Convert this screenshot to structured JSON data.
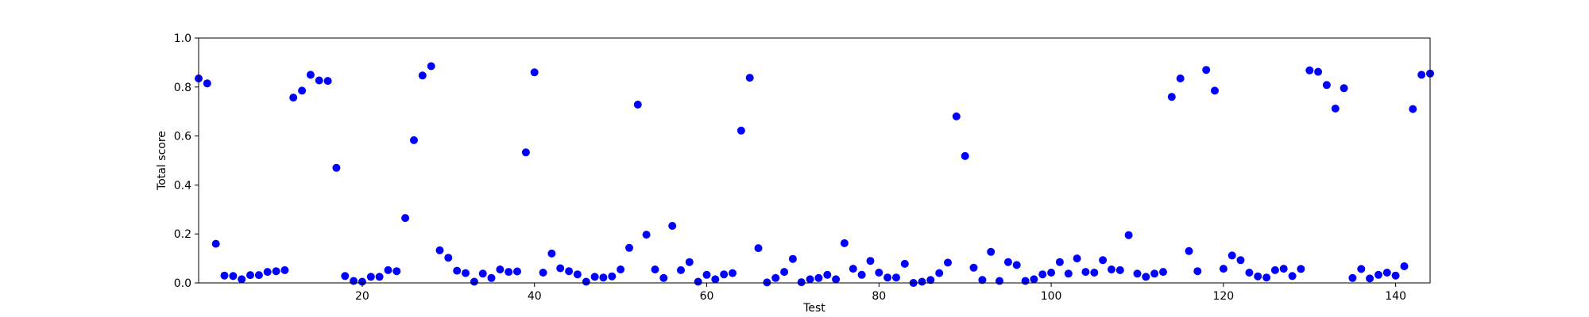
{
  "chart_data": {
    "type": "scatter",
    "title": "",
    "xlabel": "Test",
    "ylabel": "Total score",
    "xlim": [
      1,
      144
    ],
    "ylim": [
      0,
      1.0
    ],
    "x_ticks": [
      20,
      40,
      60,
      80,
      100,
      120,
      140
    ],
    "x_tick_labels": [
      "20",
      "40",
      "60",
      "80",
      "100",
      "120",
      "140"
    ],
    "y_ticks": [
      0.0,
      0.2,
      0.4,
      0.6,
      0.8,
      1.0
    ],
    "y_tick_labels": [
      "0.0",
      "0.2",
      "0.4",
      "0.6",
      "0.8",
      "1.0"
    ],
    "grid": false,
    "point_color": "#0000ff",
    "x": [
      1,
      2,
      3,
      4,
      5,
      6,
      7,
      8,
      9,
      10,
      11,
      12,
      13,
      14,
      15,
      16,
      17,
      18,
      19,
      20,
      21,
      22,
      23,
      24,
      25,
      26,
      27,
      28,
      29,
      30,
      31,
      32,
      33,
      34,
      35,
      36,
      37,
      38,
      39,
      40,
      41,
      42,
      43,
      44,
      45,
      46,
      47,
      48,
      49,
      50,
      51,
      52,
      53,
      54,
      55,
      56,
      57,
      58,
      59,
      60,
      61,
      62,
      63,
      64,
      65,
      66,
      67,
      68,
      69,
      70,
      71,
      72,
      73,
      74,
      75,
      76,
      77,
      78,
      79,
      80,
      81,
      82,
      83,
      84,
      85,
      86,
      87,
      88,
      89,
      90,
      91,
      92,
      93,
      94,
      95,
      96,
      97,
      98,
      99,
      100,
      101,
      102,
      103,
      104,
      105,
      106,
      107,
      108,
      109,
      110,
      111,
      112,
      113,
      114,
      115,
      116,
      117,
      118,
      119,
      120,
      121,
      122,
      123,
      124,
      125,
      126,
      127,
      128,
      129,
      130,
      131,
      132,
      133,
      134,
      135,
      136,
      137,
      138,
      139,
      140,
      141,
      142,
      143,
      144
    ],
    "y": [
      0.835,
      0.815,
      0.16,
      0.03,
      0.028,
      0.015,
      0.032,
      0.032,
      0.045,
      0.048,
      0.052,
      0.757,
      0.785,
      0.85,
      0.827,
      0.825,
      0.47,
      0.028,
      0.008,
      0.005,
      0.025,
      0.025,
      0.052,
      0.048,
      0.265,
      0.583,
      0.847,
      0.885,
      0.133,
      0.103,
      0.05,
      0.04,
      0.005,
      0.038,
      0.02,
      0.055,
      0.045,
      0.047,
      0.533,
      0.86,
      0.042,
      0.12,
      0.06,
      0.048,
      0.035,
      0.005,
      0.025,
      0.022,
      0.027,
      0.055,
      0.143,
      0.728,
      0.197,
      0.055,
      0.02,
      0.233,
      0.052,
      0.085,
      0.005,
      0.033,
      0.015,
      0.035,
      0.04,
      0.622,
      0.838,
      0.142,
      0.002,
      0.02,
      0.045,
      0.098,
      0.003,
      0.015,
      0.02,
      0.033,
      0.015,
      0.162,
      0.058,
      0.033,
      0.09,
      0.042,
      0.022,
      0.022,
      0.078,
      0.0,
      0.005,
      0.012,
      0.04,
      0.083,
      0.68,
      0.518,
      0.062,
      0.012,
      0.127,
      0.008,
      0.085,
      0.073,
      0.008,
      0.015,
      0.035,
      0.042,
      0.085,
      0.038,
      0.1,
      0.045,
      0.042,
      0.093,
      0.055,
      0.052,
      0.195,
      0.038,
      0.025,
      0.038,
      0.045,
      0.76,
      0.835,
      0.13,
      0.048,
      0.87,
      0.785,
      0.058,
      0.112,
      0.093,
      0.042,
      0.027,
      0.022,
      0.052,
      0.058,
      0.028,
      0.057,
      0.868,
      0.862,
      0.808,
      0.712,
      0.795,
      0.02,
      0.057,
      0.018,
      0.033,
      0.042,
      0.03,
      0.068,
      0.71,
      0.85,
      0.855
    ]
  }
}
